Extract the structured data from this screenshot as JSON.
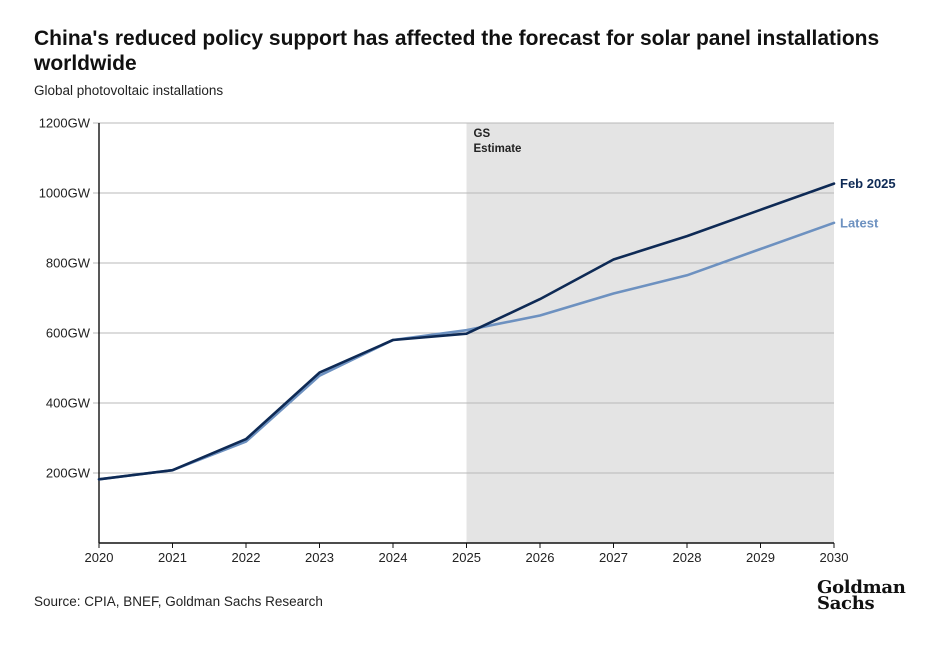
{
  "header": {
    "title": "China's reduced policy support has affected the forecast for solar panel installations worldwide",
    "subtitle": "Global photovoltaic installations"
  },
  "footer": {
    "source": "Source: CPIA, BNEF, Goldman Sachs Research",
    "logo_line1": "Goldman",
    "logo_line2": "Sachs"
  },
  "chart_data": {
    "type": "line",
    "title": "China's reduced policy support has affected the forecast for solar panel installations worldwide",
    "subtitle": "Global photovoltaic installations",
    "x": [
      2020,
      2021,
      2022,
      2023,
      2024,
      2025,
      2026,
      2027,
      2028,
      2029,
      2030
    ],
    "x_tick_labels": [
      "2020",
      "2021",
      "2022",
      "2023",
      "2024",
      "2025",
      "2026",
      "2027",
      "2028",
      "2029",
      "2030"
    ],
    "xlim": [
      2020,
      2030
    ],
    "ylim": [
      0,
      1200
    ],
    "y_ticks": [
      200,
      400,
      600,
      800,
      1000,
      1200
    ],
    "y_tick_labels": [
      "200GW",
      "400GW",
      "600GW",
      "800GW",
      "1000GW",
      "1200GW"
    ],
    "grid": "horizontal",
    "shaded_region": {
      "from": 2025,
      "to": 2030,
      "label_line1": "GS",
      "label_line2": "Estimate",
      "color": "#e4e4e4"
    },
    "series": [
      {
        "name": "Feb 2025",
        "color": "#0e2a55",
        "values": [
          182,
          208,
          297,
          487,
          580,
          598,
          697,
          810,
          877,
          952,
          1027
        ]
      },
      {
        "name": "Latest",
        "color": "#6d91c0",
        "values": [
          182,
          208,
          290,
          478,
          580,
          608,
          650,
          713,
          765,
          840,
          915
        ]
      }
    ]
  }
}
